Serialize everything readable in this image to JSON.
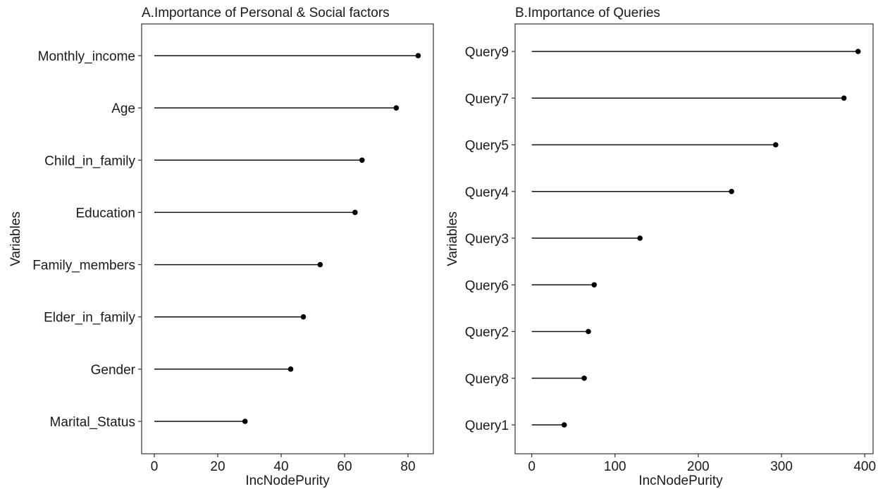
{
  "chart_data": [
    {
      "type": "lollipop",
      "title": "A.Importance of Personal & Social factors",
      "xlabel": "IncNodePurity",
      "ylabel": "Variables",
      "xlim": [
        -4,
        88
      ],
      "xticks": [
        0,
        20,
        40,
        60,
        80
      ],
      "grid": false,
      "categories": [
        "Monthly_income",
        "Age",
        "Child_in_family",
        "Education",
        "Family_members",
        "Elder_in_family",
        "Gender",
        "Marital_Status"
      ],
      "values": [
        83.2,
        76.3,
        65.5,
        63.3,
        52.3,
        47.0,
        43.0,
        28.6
      ]
    },
    {
      "type": "lollipop",
      "title": "B.Importance of Queries",
      "xlabel": "IncNodePurity",
      "ylabel": "Variables",
      "xlim": [
        -20,
        410
      ],
      "xticks": [
        0,
        100,
        200,
        300,
        400
      ],
      "grid": false,
      "categories": [
        "Query9",
        "Query7",
        "Query5",
        "Query4",
        "Query3",
        "Query6",
        "Query2",
        "Query8",
        "Query1"
      ],
      "values": [
        392,
        375,
        293,
        240,
        130,
        75,
        68,
        63,
        39
      ]
    }
  ]
}
